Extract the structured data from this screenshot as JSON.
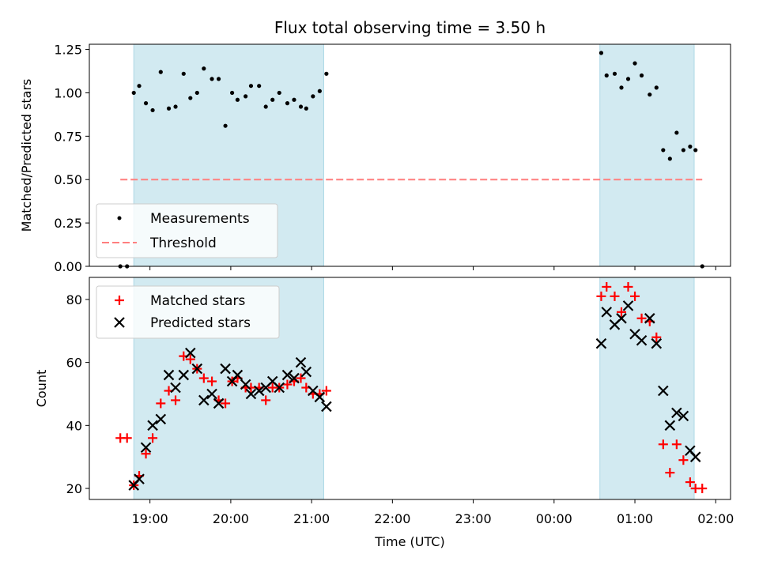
{
  "chart_data": [
    {
      "type": "scatter",
      "title": "Flux total observing time = 3.50 h",
      "ylabel": "Matched/Predicted stars",
      "xlim": [
        "18:15",
        "02:11"
      ],
      "ylim": [
        0,
        1.28
      ],
      "y_ticks": [
        "0.00",
        "0.25",
        "0.50",
        "0.75",
        "1.00",
        "1.25"
      ],
      "shaded_intervals": [
        [
          "18:48",
          "21:09"
        ],
        [
          "00:34",
          "01:44"
        ]
      ],
      "legend": {
        "placement": "lower-left",
        "entries": [
          "Measurements",
          "Threshold"
        ]
      },
      "series": [
        {
          "name": "Measurements",
          "marker": "dot",
          "color": "#000000",
          "points": [
            [
              "18:38",
              0.0
            ],
            [
              "18:43",
              0.0
            ],
            [
              "18:48",
              1.0
            ],
            [
              "18:52",
              1.04
            ],
            [
              "18:57",
              0.94
            ],
            [
              "19:02",
              0.9
            ],
            [
              "19:08",
              1.12
            ],
            [
              "19:14",
              0.91
            ],
            [
              "19:19",
              0.92
            ],
            [
              "19:25",
              1.11
            ],
            [
              "19:30",
              0.97
            ],
            [
              "19:35",
              1.0
            ],
            [
              "19:40",
              1.14
            ],
            [
              "19:46",
              1.08
            ],
            [
              "19:51",
              1.08
            ],
            [
              "19:56",
              0.81
            ],
            [
              "20:01",
              1.0
            ],
            [
              "20:05",
              0.96
            ],
            [
              "20:11",
              0.98
            ],
            [
              "20:15",
              1.04
            ],
            [
              "20:21",
              1.04
            ],
            [
              "20:26",
              0.92
            ],
            [
              "20:31",
              0.96
            ],
            [
              "20:36",
              1.0
            ],
            [
              "20:42",
              0.94
            ],
            [
              "20:47",
              0.96
            ],
            [
              "20:52",
              0.92
            ],
            [
              "20:56",
              0.91
            ],
            [
              "21:01",
              0.98
            ],
            [
              "21:06",
              1.01
            ],
            [
              "21:11",
              1.11
            ],
            [
              "00:35",
              1.23
            ],
            [
              "00:39",
              1.1
            ],
            [
              "00:45",
              1.11
            ],
            [
              "00:50",
              1.03
            ],
            [
              "00:55",
              1.08
            ],
            [
              "01:00",
              1.17
            ],
            [
              "01:05",
              1.1
            ],
            [
              "01:11",
              0.99
            ],
            [
              "01:16",
              1.03
            ],
            [
              "01:21",
              0.67
            ],
            [
              "01:26",
              0.62
            ],
            [
              "01:31",
              0.77
            ],
            [
              "01:36",
              0.67
            ],
            [
              "01:41",
              0.69
            ],
            [
              "01:45",
              0.67
            ],
            [
              "01:50",
              0.0
            ]
          ]
        },
        {
          "name": "Threshold",
          "marker": "dashed-line",
          "color": "#ff7f7f",
          "points": [
            [
              "18:38",
              0.5
            ],
            [
              "01:50",
              0.5
            ]
          ]
        }
      ]
    },
    {
      "type": "scatter",
      "xlabel": "Time (UTC)",
      "ylabel": "Count",
      "xlim": [
        "18:15",
        "02:11"
      ],
      "ylim": [
        16.5,
        87
      ],
      "y_ticks": [
        "20",
        "40",
        "60",
        "80"
      ],
      "x_ticks": [
        "19:00",
        "20:00",
        "21:00",
        "22:00",
        "23:00",
        "00:00",
        "01:00",
        "02:00"
      ],
      "shaded_intervals": [
        [
          "18:48",
          "21:09"
        ],
        [
          "00:34",
          "01:44"
        ]
      ],
      "legend": {
        "placement": "upper-left",
        "entries": [
          "Matched stars",
          "Predicted stars"
        ]
      },
      "series": [
        {
          "name": "Matched stars",
          "marker": "plus",
          "color": "#ff0000",
          "points": [
            [
              "18:38",
              36
            ],
            [
              "18:43",
              36
            ],
            [
              "18:48",
              21
            ],
            [
              "18:52",
              24
            ],
            [
              "18:57",
              31
            ],
            [
              "19:02",
              36
            ],
            [
              "19:08",
              47
            ],
            [
              "19:14",
              51
            ],
            [
              "19:19",
              48
            ],
            [
              "19:25",
              62
            ],
            [
              "19:30",
              61
            ],
            [
              "19:35",
              58
            ],
            [
              "19:40",
              55
            ],
            [
              "19:46",
              54
            ],
            [
              "19:51",
              48
            ],
            [
              "19:56",
              47
            ],
            [
              "20:01",
              54
            ],
            [
              "20:05",
              55
            ],
            [
              "20:11",
              52
            ],
            [
              "20:15",
              52
            ],
            [
              "20:21",
              52
            ],
            [
              "20:26",
              48
            ],
            [
              "20:31",
              52
            ],
            [
              "20:36",
              52
            ],
            [
              "20:42",
              53
            ],
            [
              "20:47",
              54
            ],
            [
              "20:52",
              55
            ],
            [
              "20:56",
              52
            ],
            [
              "21:01",
              50
            ],
            [
              "21:06",
              50
            ],
            [
              "21:11",
              51
            ],
            [
              "00:35",
              81
            ],
            [
              "00:39",
              84
            ],
            [
              "00:45",
              81
            ],
            [
              "00:50",
              76
            ],
            [
              "00:55",
              84
            ],
            [
              "01:00",
              81
            ],
            [
              "01:05",
              74
            ],
            [
              "01:11",
              73
            ],
            [
              "01:16",
              68
            ],
            [
              "01:21",
              34
            ],
            [
              "01:26",
              25
            ],
            [
              "01:31",
              34
            ],
            [
              "01:36",
              29
            ],
            [
              "01:41",
              22
            ],
            [
              "01:45",
              20
            ],
            [
              "01:50",
              20
            ]
          ]
        },
        {
          "name": "Predicted stars",
          "marker": "x",
          "color": "#000000",
          "points": [
            [
              "18:48",
              21
            ],
            [
              "18:52",
              23
            ],
            [
              "18:57",
              33
            ],
            [
              "19:02",
              40
            ],
            [
              "19:08",
              42
            ],
            [
              "19:14",
              56
            ],
            [
              "19:19",
              52
            ],
            [
              "19:25",
              56
            ],
            [
              "19:30",
              63
            ],
            [
              "19:35",
              58
            ],
            [
              "19:40",
              48
            ],
            [
              "19:46",
              50
            ],
            [
              "19:51",
              47
            ],
            [
              "19:56",
              58
            ],
            [
              "20:01",
              54
            ],
            [
              "20:05",
              56
            ],
            [
              "20:11",
              53
            ],
            [
              "20:15",
              50
            ],
            [
              "20:21",
              51
            ],
            [
              "20:26",
              52
            ],
            [
              "20:31",
              54
            ],
            [
              "20:36",
              52
            ],
            [
              "20:42",
              56
            ],
            [
              "20:47",
              55
            ],
            [
              "20:52",
              60
            ],
            [
              "20:56",
              57
            ],
            [
              "21:01",
              51
            ],
            [
              "21:06",
              49
            ],
            [
              "21:11",
              46
            ],
            [
              "00:35",
              66
            ],
            [
              "00:39",
              76
            ],
            [
              "00:45",
              72
            ],
            [
              "00:50",
              74
            ],
            [
              "00:55",
              78
            ],
            [
              "01:00",
              69
            ],
            [
              "01:05",
              67
            ],
            [
              "01:11",
              74
            ],
            [
              "01:16",
              66
            ],
            [
              "01:21",
              51
            ],
            [
              "01:26",
              40
            ],
            [
              "01:31",
              44
            ],
            [
              "01:36",
              43
            ],
            [
              "01:41",
              32
            ],
            [
              "01:45",
              30
            ]
          ]
        }
      ]
    }
  ],
  "colors": {
    "shade": "#add8e6",
    "threshold": "#ff7f7f",
    "matched": "#ff0000",
    "predicted": "#000000",
    "measurement": "#000000"
  }
}
